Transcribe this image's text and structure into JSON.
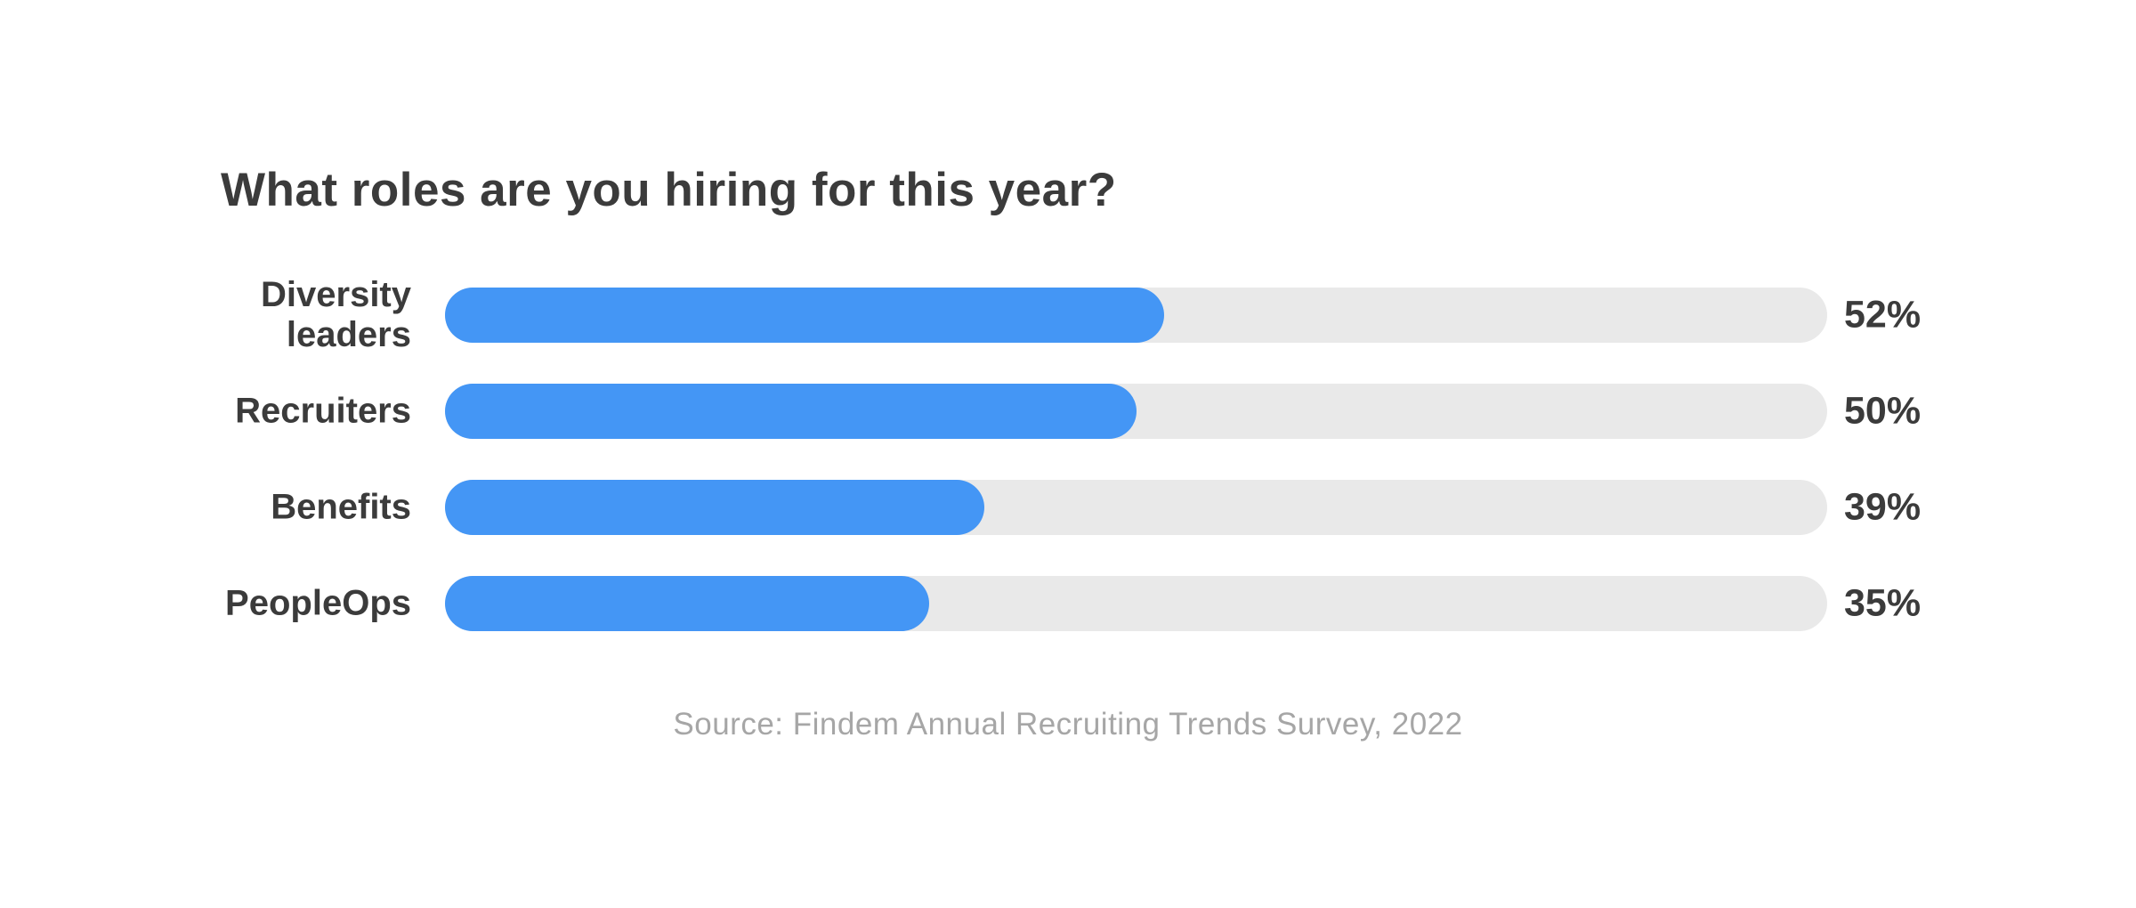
{
  "chart_data": {
    "type": "bar",
    "orientation": "horizontal",
    "title": "What roles are you hiring for this year?",
    "categories": [
      "Diversity leaders",
      "Recruiters",
      "Benefits",
      "PeopleOps"
    ],
    "values": [
      52,
      50,
      39,
      35
    ],
    "value_labels": [
      "52%",
      "50%",
      "39%",
      "35%"
    ],
    "xlim": [
      0,
      100
    ],
    "grid": false,
    "legend": false,
    "source": "Source: Findem Annual Recruiting Trends Survey, 2022",
    "colors": {
      "bar_fill": "#4496F5",
      "bar_track": "#E9E9E9",
      "text_dark": "#3B3B3B",
      "source_text": "#A6A6A6",
      "background": "#FFFFFF"
    }
  }
}
